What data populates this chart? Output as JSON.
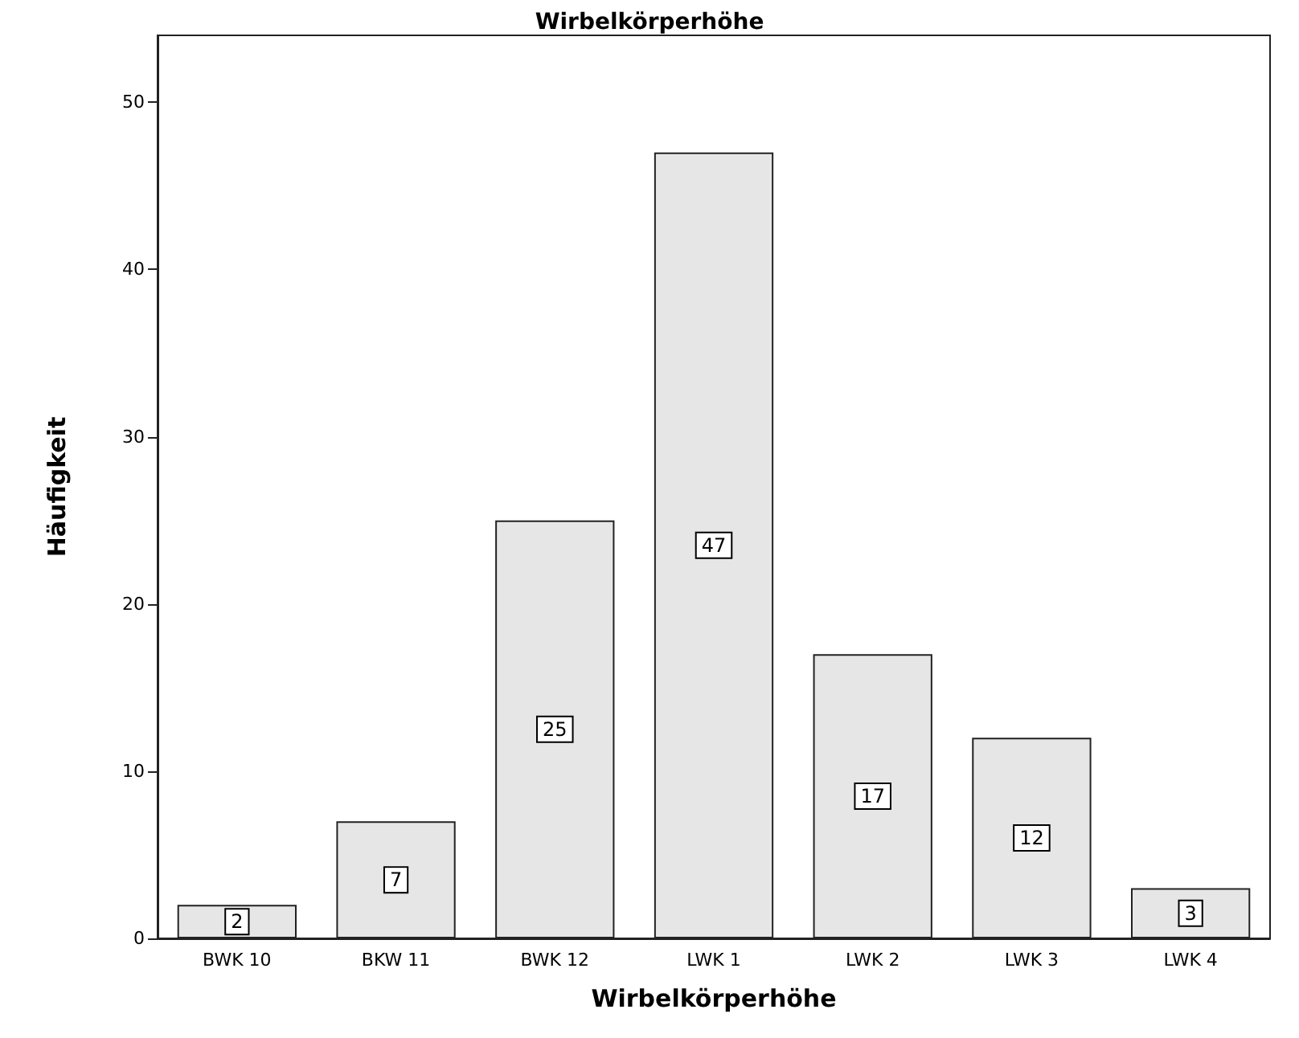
{
  "chart_data": {
    "type": "bar",
    "title": "Wirbelkörperhöhe",
    "xlabel": "Wirbelkörperhöhe",
    "ylabel": "Häufigkeit",
    "categories": [
      "BWK 10",
      "BKW 11",
      "BWK 12",
      "LWK 1",
      "LWK 2",
      "LWK 3",
      "LWK 4"
    ],
    "values": [
      2,
      7,
      25,
      47,
      17,
      12,
      3
    ],
    "color": "#e6e6e6",
    "ylim": [
      0,
      54
    ],
    "yticks": [
      0,
      10,
      20,
      30,
      40,
      50
    ],
    "grid": false,
    "data_labels": true
  }
}
